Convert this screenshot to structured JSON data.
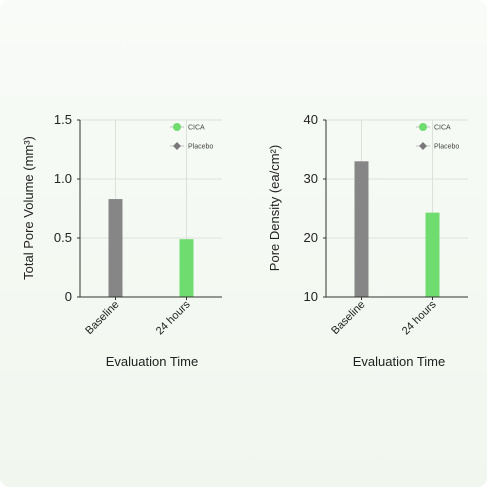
{
  "chart_data": [
    {
      "type": "bar",
      "categories": [
        "Baseline",
        "24 hours"
      ],
      "series": [
        {
          "name": "CICA",
          "values": [
            null,
            0.49
          ]
        },
        {
          "name": "Placebo",
          "values": [
            0.83,
            null
          ]
        }
      ],
      "xlabel": "Evaluation Time",
      "ylabel": "Total Pore Volume (mm³)",
      "ylim": [
        0,
        1.5
      ],
      "yticks": [
        "0",
        "0.5",
        "1.0",
        "1.5"
      ],
      "grid": true,
      "legend_position": "top-right"
    },
    {
      "type": "bar",
      "categories": [
        "Baseline",
        "24 hours"
      ],
      "series": [
        {
          "name": "CICA",
          "values": [
            null,
            24.3
          ]
        },
        {
          "name": "Placebo",
          "values": [
            33.0,
            null
          ]
        }
      ],
      "xlabel": "Evaluation Time",
      "ylabel": "Pore Density (ea/cm²)",
      "ylim": [
        10,
        40
      ],
      "yticks": [
        "10",
        "20",
        "30",
        "40"
      ],
      "grid": true,
      "legend_position": "top-right"
    }
  ],
  "colors": {
    "cica": "#6fdc6f",
    "placebo": "#868686",
    "legend_placebo_marker": "#7a7a7a",
    "grid": "#d6dbd4",
    "axis": "#333333"
  }
}
